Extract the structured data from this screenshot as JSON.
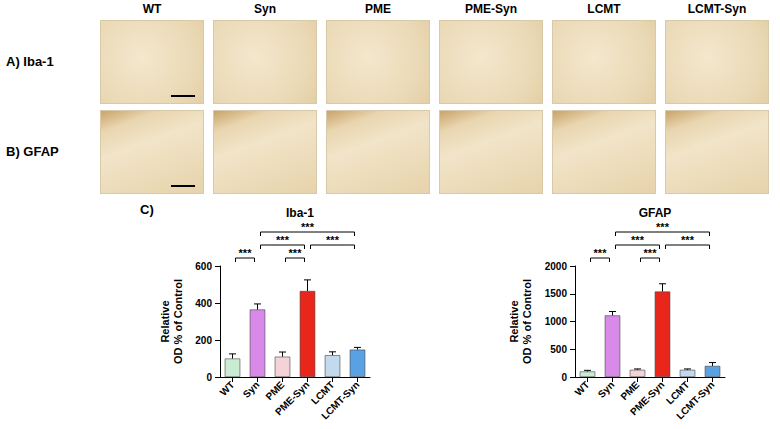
{
  "figure": {
    "columns": [
      "WT",
      "Syn",
      "PME",
      "PME-Syn",
      "LCMT",
      "LCMT-Syn"
    ],
    "rows": [
      "A) Iba-1",
      "B) GFAP"
    ],
    "panel_label": "C)"
  },
  "chart_data": [
    {
      "type": "bar",
      "title": "Iba-1",
      "y_label": "Relative OD % of Control",
      "categories": [
        "WT",
        "Syn",
        "PME",
        "PME-Syn",
        "LCMT",
        "LCMT-Syn"
      ],
      "values": [
        100,
        365,
        110,
        465,
        118,
        148
      ],
      "errors": [
        25,
        30,
        25,
        60,
        18,
        12
      ],
      "colors": [
        "#c9ecd2",
        "#d98ae8",
        "#f4d3d8",
        "#e8261c",
        "#c2d9ee",
        "#5aa1e3"
      ],
      "ylim": [
        0,
        600
      ],
      "yticks": [
        0,
        200,
        400,
        600
      ],
      "grid": false,
      "annotations": [
        {
          "from": "WT",
          "to": "Syn",
          "text": "***"
        },
        {
          "from": "PME",
          "to": "PME-Syn",
          "text": "***"
        },
        {
          "from": "Syn",
          "to": "PME-Syn",
          "text": "***"
        },
        {
          "from": "PME-Syn",
          "to": "LCMT-Syn",
          "text": "***"
        },
        {
          "from": "Syn",
          "to": "LCMT-Syn",
          "text": "***"
        }
      ]
    },
    {
      "type": "bar",
      "title": "GFAP",
      "y_label": "Relative OD % of Control",
      "categories": [
        "WT",
        "Syn",
        "PME",
        "PME-Syn",
        "LCMT",
        "LCMT-Syn"
      ],
      "values": [
        100,
        1110,
        130,
        1540,
        130,
        200
      ],
      "errors": [
        20,
        70,
        15,
        140,
        15,
        60
      ],
      "colors": [
        "#c9ecd2",
        "#d98ae8",
        "#f4d3d8",
        "#e8261c",
        "#c2d9ee",
        "#5aa1e3"
      ],
      "ylim": [
        0,
        2000
      ],
      "yticks": [
        0,
        500,
        1000,
        1500,
        2000
      ],
      "grid": false,
      "annotations": [
        {
          "from": "WT",
          "to": "Syn",
          "text": "***"
        },
        {
          "from": "PME",
          "to": "PME-Syn",
          "text": "***"
        },
        {
          "from": "Syn",
          "to": "PME-Syn",
          "text": "***"
        },
        {
          "from": "PME-Syn",
          "to": "LCMT-Syn",
          "text": "***"
        },
        {
          "from": "Syn",
          "to": "LCMT-Syn",
          "text": "***"
        }
      ]
    }
  ]
}
